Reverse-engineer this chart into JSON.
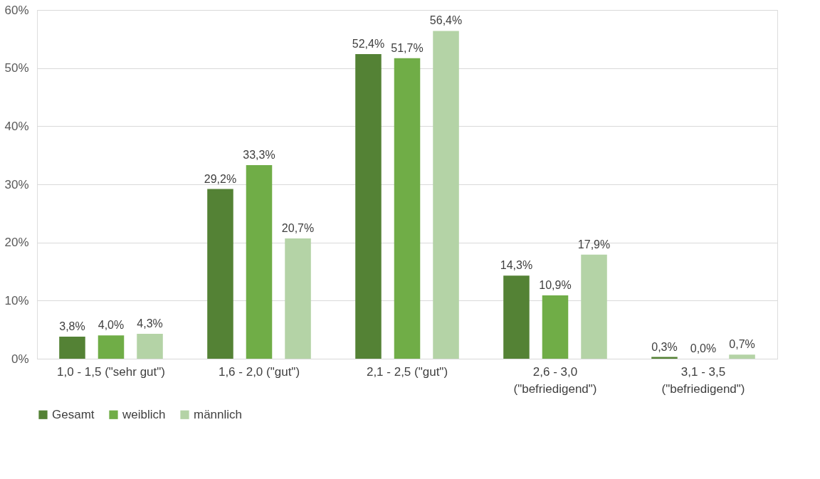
{
  "chart_data": {
    "type": "bar",
    "categories": [
      "1,0 - 1,5 (\"sehr gut\")",
      "1,6 - 2,0 (\"gut\")",
      "2,1 - 2,5 (\"gut\")",
      "2,6 - 3,0\n(\"befriedigend\")",
      "3,1 - 3,5\n(\"befriedigend\")"
    ],
    "series": [
      {
        "name": "Gesamt",
        "color": "#548235",
        "values": [
          3.8,
          29.2,
          52.4,
          14.3,
          0.3
        ],
        "value_labels": [
          "3,8%",
          "29,2%",
          "52,4%",
          "14,3%",
          "0,3%"
        ]
      },
      {
        "name": "weiblich",
        "color": "#70ad47",
        "values": [
          4.0,
          33.3,
          51.7,
          10.9,
          0.0
        ],
        "value_labels": [
          "4,0%",
          "33,3%",
          "51,7%",
          "10,9%",
          "0,0%"
        ]
      },
      {
        "name": "männlich",
        "color": "#b4d3a6",
        "values": [
          4.3,
          20.7,
          56.4,
          17.9,
          0.7
        ],
        "value_labels": [
          "4,3%",
          "20,7%",
          "56,4%",
          "17,9%",
          "0,7%"
        ]
      }
    ],
    "ylim": [
      0,
      60
    ],
    "yticks": [
      {
        "value": 0,
        "label": "0%"
      },
      {
        "value": 10,
        "label": "10%"
      },
      {
        "value": 20,
        "label": "20%"
      },
      {
        "value": 30,
        "label": "30%"
      },
      {
        "value": 40,
        "label": "40%"
      },
      {
        "value": 50,
        "label": "50%"
      },
      {
        "value": 60,
        "label": "60%"
      }
    ],
    "grid": "y",
    "legend": "bottom"
  }
}
